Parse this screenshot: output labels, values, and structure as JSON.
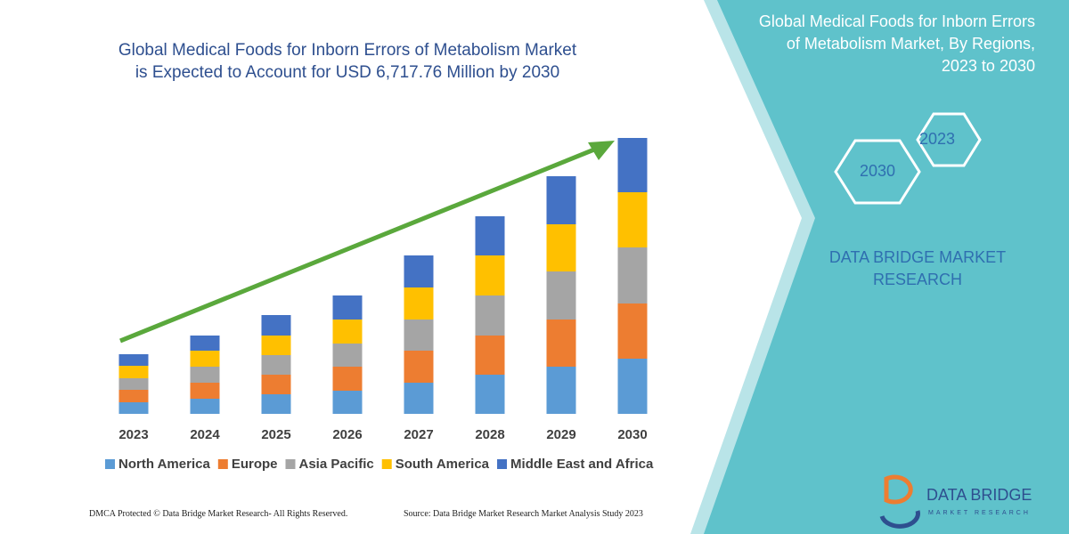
{
  "chart_data": {
    "type": "stacked-bar",
    "title_lines": [
      "Global Medical Foods for Inborn Errors of Metabolism Market",
      "is Expected to Account for USD 6,717.76 Million by 2030"
    ],
    "categories": [
      "2023",
      "2024",
      "2025",
      "2026",
      "2027",
      "2028",
      "2029",
      "2030"
    ],
    "series": [
      {
        "name": "North America",
        "color": "#5b9bd5",
        "values": [
          13,
          17,
          22,
          26,
          35,
          44,
          53,
          62
        ]
      },
      {
        "name": "Europe",
        "color": "#ed7d31",
        "values": [
          14,
          18,
          22,
          27,
          36,
          44,
          53,
          62
        ]
      },
      {
        "name": "Asia Pacific",
        "color": "#a5a5a5",
        "values": [
          13,
          18,
          22,
          26,
          35,
          45,
          54,
          63
        ]
      },
      {
        "name": "South America",
        "color": "#ffc000",
        "values": [
          14,
          18,
          22,
          27,
          36,
          45,
          53,
          62
        ]
      },
      {
        "name": "Middle East and Africa",
        "color": "#4472c4",
        "values": [
          13,
          17,
          23,
          27,
          36,
          44,
          54,
          61
        ]
      }
    ]
  },
  "panel": {
    "title": "Global Medical Foods for Inborn Errors of Metabolism Market, By Regions, 2023 to 2030",
    "hexagons": [
      "2023",
      "2030"
    ],
    "brand": "DATA BRIDGE MARKET RESEARCH"
  },
  "logo": {
    "name": "DATA BRIDGE",
    "tagline": "MARKET RESEARCH"
  },
  "footer": {
    "left": "DMCA Protected © Data Bridge Market Research-  All Rights Reserved.",
    "right": "Source: Data Bridge Market Research  Market Analysis Study 2023"
  }
}
